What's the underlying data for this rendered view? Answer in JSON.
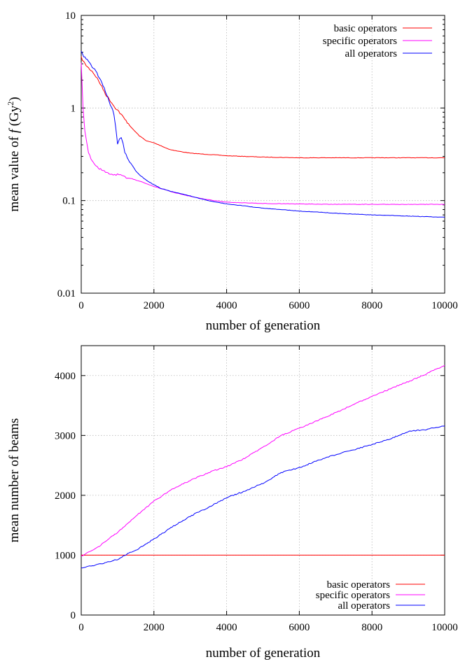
{
  "chart_data": [
    {
      "type": "line",
      "xlabel": "number of generation",
      "ylabel": "mean value of f (Gy²)",
      "ylabel_parts": {
        "pre": "mean value of ",
        "var": "f",
        "unit_open": " (Gy",
        "sup": "2",
        "unit_close": ")"
      },
      "y_scale": "log",
      "xlim": [
        0,
        10000
      ],
      "ylim": [
        0.01,
        10
      ],
      "x_ticks": [
        "0",
        "2000",
        "4000",
        "6000",
        "8000",
        "10000"
      ],
      "x_tick_values": [
        0,
        2000,
        4000,
        6000,
        8000,
        10000
      ],
      "y_ticks": [
        "0.01",
        "0.1",
        "1",
        "10"
      ],
      "y_tick_values": [
        0.01,
        0.1,
        1,
        10
      ],
      "grid": true,
      "legend": "top-right",
      "series": [
        {
          "name": "basic operators",
          "color": "#ff0000",
          "x": [
            0,
            100,
            200,
            300,
            400,
            500,
            600,
            700,
            800,
            900,
            1000,
            1100,
            1200,
            1300,
            1400,
            1500,
            1600,
            1700,
            1800,
            1900,
            2000,
            2200,
            2400,
            2600,
            2800,
            3000,
            3500,
            4000,
            5000,
            6000,
            7000,
            8000,
            9000,
            10000
          ],
          "y": [
            3.5,
            3.0,
            2.7,
            2.5,
            2.2,
            1.9,
            1.6,
            1.35,
            1.2,
            1.05,
            0.95,
            0.85,
            0.75,
            0.68,
            0.6,
            0.55,
            0.5,
            0.47,
            0.44,
            0.43,
            0.42,
            0.39,
            0.36,
            0.345,
            0.335,
            0.325,
            0.315,
            0.305,
            0.295,
            0.29,
            0.29,
            0.29,
            0.29,
            0.29
          ]
        },
        {
          "name": "specific operators",
          "color": "#ff00ff",
          "x": [
            0,
            50,
            100,
            150,
            200,
            300,
            400,
            500,
            600,
            700,
            800,
            1000,
            1200,
            1400,
            1600,
            1800,
            2000,
            2500,
            3000,
            3500,
            4000,
            5000,
            6000,
            7000,
            8000,
            9000,
            10000
          ],
          "y": [
            3.0,
            1.0,
            0.55,
            0.42,
            0.33,
            0.27,
            0.24,
            0.22,
            0.21,
            0.2,
            0.195,
            0.19,
            0.18,
            0.172,
            0.162,
            0.152,
            0.142,
            0.124,
            0.111,
            0.102,
            0.096,
            0.093,
            0.092,
            0.091,
            0.091,
            0.091,
            0.091
          ]
        },
        {
          "name": "all operators",
          "color": "#0000ff",
          "x": [
            0,
            100,
            200,
            300,
            400,
            500,
            600,
            700,
            800,
            900,
            950,
            1000,
            1050,
            1100,
            1150,
            1200,
            1300,
            1400,
            1500,
            1600,
            1800,
            2000,
            2200,
            2500,
            3000,
            3500,
            4000,
            5000,
            6000,
            7000,
            8000,
            9000,
            10000
          ],
          "y": [
            4.0,
            3.5,
            3.2,
            2.8,
            2.5,
            2.1,
            1.75,
            1.4,
            1.1,
            0.85,
            0.62,
            0.4,
            0.45,
            0.47,
            0.42,
            0.33,
            0.28,
            0.24,
            0.21,
            0.19,
            0.165,
            0.148,
            0.135,
            0.125,
            0.112,
            0.1,
            0.092,
            0.083,
            0.077,
            0.073,
            0.07,
            0.068,
            0.066
          ]
        }
      ]
    },
    {
      "type": "line",
      "xlabel": "number of generation",
      "ylabel": "mean number of beams",
      "y_scale": "linear",
      "xlim": [
        0,
        10000
      ],
      "ylim": [
        0,
        4500
      ],
      "x_ticks": [
        "0",
        "2000",
        "4000",
        "6000",
        "8000",
        "10000"
      ],
      "x_tick_values": [
        0,
        2000,
        4000,
        6000,
        8000,
        10000
      ],
      "y_ticks": [
        "0",
        "1000",
        "2000",
        "3000",
        "4000"
      ],
      "y_tick_values": [
        0,
        1000,
        2000,
        3000,
        4000
      ],
      "grid": true,
      "legend": "bottom-right",
      "series": [
        {
          "name": "basic operators",
          "color": "#ff0000",
          "x": [
            0,
            10000
          ],
          "y": [
            1000,
            1000
          ]
        },
        {
          "name": "specific operators",
          "color": "#ff00ff",
          "x": [
            0,
            500,
            1000,
            1500,
            2000,
            2500,
            3000,
            3500,
            4000,
            4500,
            5000,
            5500,
            6000,
            6500,
            7000,
            7500,
            8000,
            8500,
            9000,
            9500,
            10000
          ],
          "y": [
            980,
            1150,
            1380,
            1650,
            1900,
            2100,
            2250,
            2380,
            2480,
            2620,
            2800,
            3000,
            3120,
            3250,
            3380,
            3520,
            3650,
            3780,
            3900,
            4030,
            4170
          ]
        },
        {
          "name": "all operators",
          "color": "#0000ff",
          "x": [
            0,
            500,
            1000,
            1200,
            1500,
            2000,
            2500,
            3000,
            3500,
            4000,
            4500,
            5000,
            5500,
            6000,
            6500,
            7000,
            7500,
            8000,
            8500,
            9000,
            9500,
            10000
          ],
          "y": [
            780,
            850,
            930,
            1000,
            1080,
            1270,
            1470,
            1650,
            1800,
            1960,
            2070,
            2200,
            2380,
            2460,
            2580,
            2680,
            2760,
            2850,
            2940,
            3070,
            3100,
            3160
          ]
        }
      ]
    }
  ]
}
